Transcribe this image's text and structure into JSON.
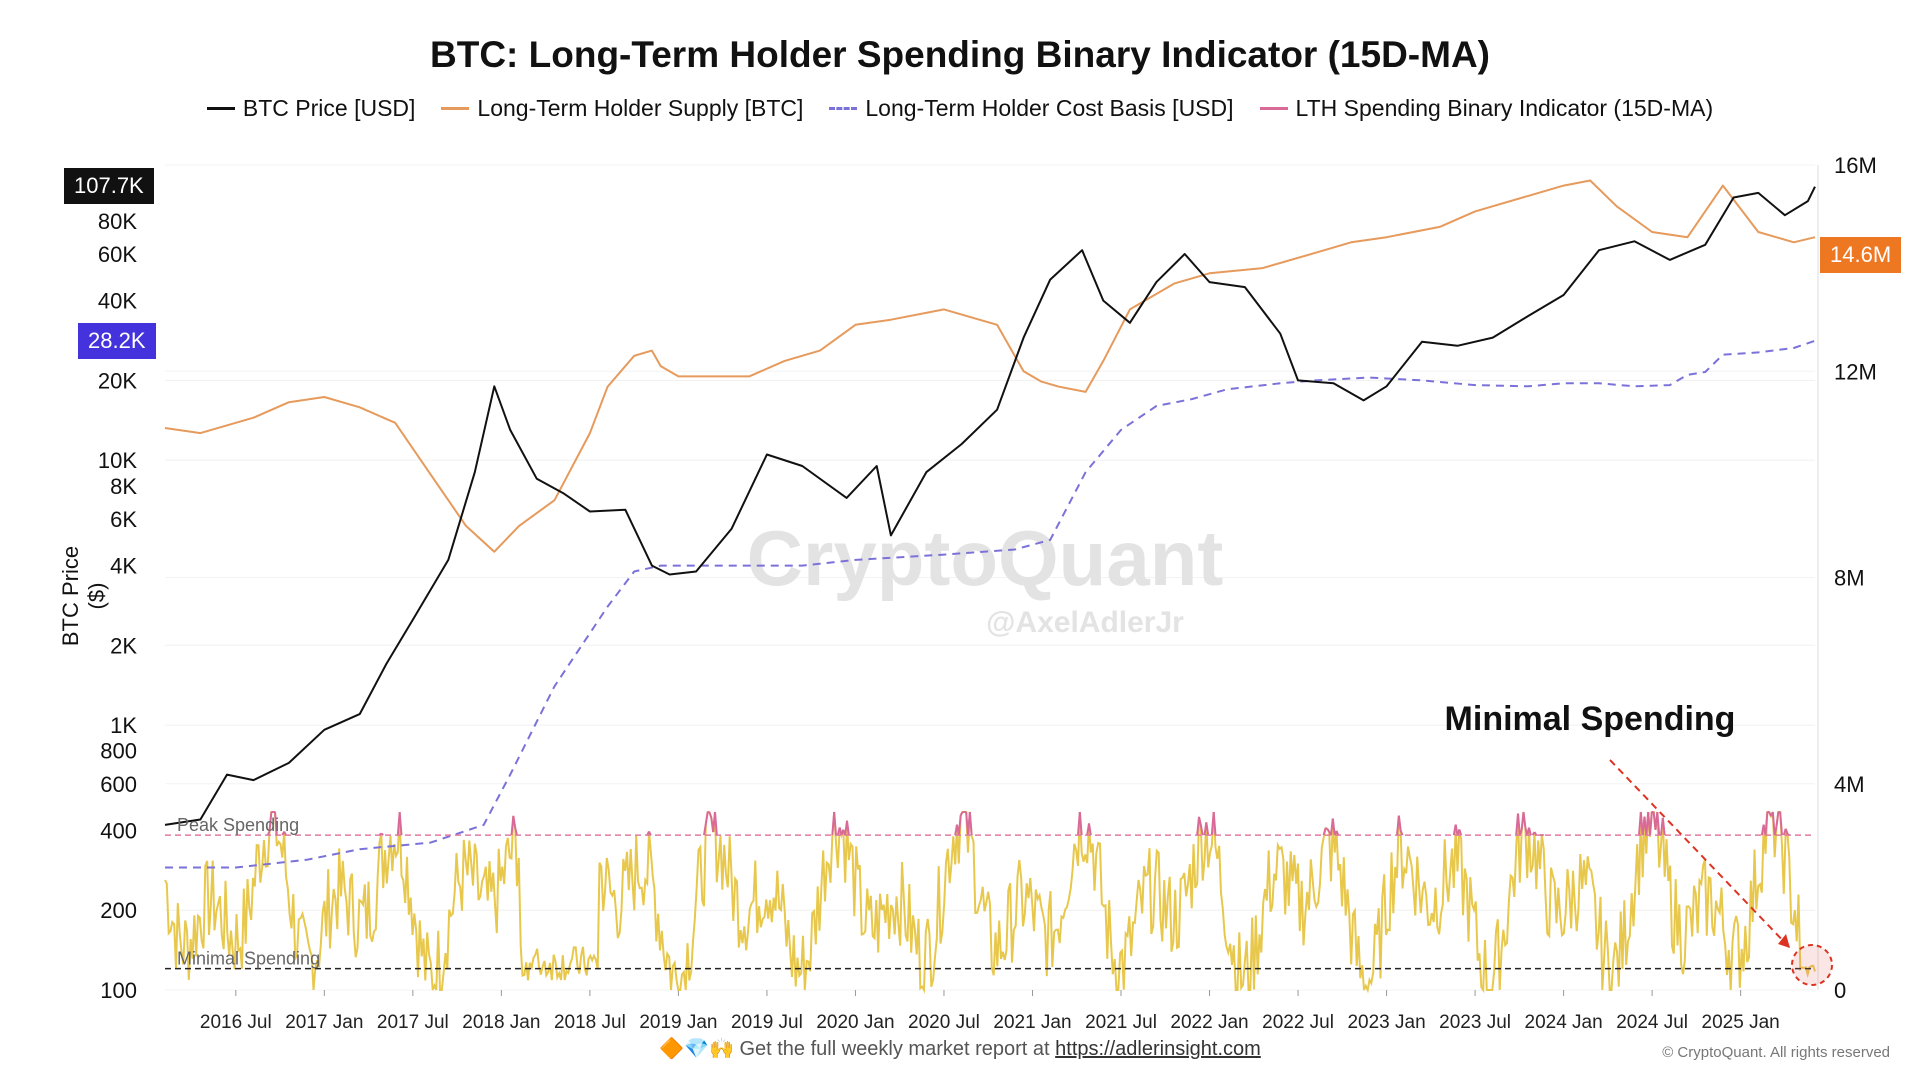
{
  "title": "BTC: Long-Term Holder Spending Binary Indicator (15D-MA)",
  "legend": [
    {
      "label": "BTC Price [USD]",
      "color": "#111111",
      "style": "solid"
    },
    {
      "label": "Long-Term Holder Supply [BTC]",
      "color": "#e69a5c",
      "style": "solid"
    },
    {
      "label": "Long-Term Holder Cost Basis [USD]",
      "color": "#7b72d9",
      "style": "dashed"
    },
    {
      "label": "LTH Spending Binary Indicator (15D-MA)",
      "color": "#d96a98",
      "style": "solid"
    }
  ],
  "annotations": {
    "minimal_spending_callout": "Minimal Spending",
    "peak_line_label": "Peak Spending",
    "minimal_line_label": "Minimal Spending",
    "watermark": "CryptoQuant",
    "watermark_handle": "@AxelAdlerJr"
  },
  "badges": {
    "price": "107.7K",
    "cost_basis": "28.2K",
    "supply": "14.6M"
  },
  "footer": {
    "text": "Get the full weekly market report at",
    "link": "https://adlerinsight.com",
    "emojis": "🔶💎🙌",
    "copyright": "© CryptoQuant. All rights reserved"
  },
  "chart_data": {
    "type": "line",
    "title": "BTC: Long-Term Holder Spending Binary Indicator (15D-MA)",
    "ylabel": "BTC Price ($)",
    "x_tick_labels": [
      "2016 Jul",
      "2017 Jan",
      "2017 Jul",
      "2018 Jan",
      "2018 Jul",
      "2019 Jan",
      "2019 Jul",
      "2020 Jan",
      "2020 Jul",
      "2021 Jan",
      "2021 Jul",
      "2022 Jan",
      "2022 Jul",
      "2023 Jan",
      "2023 Jul",
      "2024 Jan",
      "2024 Jul",
      "2025 Jan"
    ],
    "x_tick_dates": [
      2016.5,
      2017.0,
      2017.5,
      2018.0,
      2018.5,
      2019.0,
      2019.5,
      2020.0,
      2020.5,
      2021.0,
      2021.5,
      2022.0,
      2022.5,
      2023.0,
      2023.5,
      2024.0,
      2024.5,
      2025.0
    ],
    "xlim": [
      2016.1,
      2025.42
    ],
    "y_left": {
      "scale": "log",
      "lim": [
        100,
        130000
      ],
      "ticks": [
        100,
        200,
        400,
        600,
        800,
        1000,
        2000,
        4000,
        6000,
        8000,
        10000,
        20000,
        40000,
        60000,
        80000
      ],
      "tick_labels": [
        "100",
        "200",
        "400",
        "600",
        "800",
        "1K",
        "2K",
        "4K",
        "6K",
        "8K",
        "10K",
        "20K",
        "40K",
        "60K",
        "80K"
      ]
    },
    "y_right": {
      "scale": "linear",
      "lim": [
        0,
        16000000
      ],
      "ticks": [
        0,
        4000000,
        8000000,
        12000000,
        16000000
      ],
      "tick_labels": [
        "0",
        "4M",
        "8M",
        "12M",
        "16M"
      ]
    },
    "binary_indicator_range": [
      0,
      1
    ],
    "peak_spending_level": 0.87,
    "minimal_spending_level": 0.12,
    "series": [
      {
        "name": "BTC Price [USD]",
        "axis": "left",
        "x": [
          2016.1,
          2016.3,
          2016.45,
          2016.6,
          2016.8,
          2017.0,
          2017.2,
          2017.35,
          2017.5,
          2017.7,
          2017.85,
          2017.96,
          2018.05,
          2018.2,
          2018.35,
          2018.5,
          2018.7,
          2018.85,
          2018.95,
          2019.1,
          2019.3,
          2019.5,
          2019.7,
          2019.95,
          2020.12,
          2020.2,
          2020.4,
          2020.6,
          2020.8,
          2020.95,
          2021.1,
          2021.28,
          2021.4,
          2021.55,
          2021.7,
          2021.86,
          2022.0,
          2022.2,
          2022.4,
          2022.5,
          2022.7,
          2022.87,
          2023.0,
          2023.2,
          2023.4,
          2023.6,
          2023.8,
          2024.0,
          2024.2,
          2024.4,
          2024.6,
          2024.8,
          2024.96,
          2025.1,
          2025.25,
          2025.38,
          2025.42
        ],
        "y": [
          420,
          440,
          650,
          620,
          720,
          960,
          1100,
          1700,
          2500,
          4200,
          9000,
          19000,
          13000,
          8500,
          7500,
          6400,
          6500,
          4000,
          3700,
          3800,
          5500,
          10500,
          9500,
          7200,
          9500,
          5200,
          9000,
          11500,
          15500,
          29000,
          48000,
          62000,
          40000,
          33000,
          47000,
          60000,
          47000,
          45000,
          30000,
          20000,
          19500,
          16800,
          19000,
          28000,
          27000,
          29000,
          35000,
          42000,
          62000,
          67000,
          57000,
          65000,
          98000,
          102000,
          84000,
          95000,
          107700
        ]
      },
      {
        "name": "Long-Term Holder Supply [BTC]",
        "axis": "right",
        "x": [
          2016.1,
          2016.3,
          2016.6,
          2016.8,
          2017.0,
          2017.2,
          2017.4,
          2017.6,
          2017.8,
          2017.96,
          2018.1,
          2018.3,
          2018.5,
          2018.6,
          2018.75,
          2018.85,
          2018.9,
          2019.0,
          2019.2,
          2019.4,
          2019.6,
          2019.8,
          2020.0,
          2020.2,
          2020.5,
          2020.8,
          2020.95,
          2021.05,
          2021.15,
          2021.3,
          2021.4,
          2021.55,
          2021.8,
          2022.0,
          2022.3,
          2022.6,
          2022.8,
          2023.0,
          2023.3,
          2023.5,
          2023.8,
          2024.0,
          2024.15,
          2024.3,
          2024.5,
          2024.7,
          2024.9,
          2025.1,
          2025.3,
          2025.42
        ],
        "y": [
          10900000,
          10800000,
          11100000,
          11400000,
          11500000,
          11300000,
          11000000,
          10000000,
          9000000,
          8500000,
          9000000,
          9500000,
          10800000,
          11700000,
          12300000,
          12400000,
          12100000,
          11900000,
          11900000,
          11900000,
          12200000,
          12400000,
          12900000,
          13000000,
          13200000,
          12900000,
          12000000,
          11800000,
          11700000,
          11600000,
          12200000,
          13200000,
          13700000,
          13900000,
          14000000,
          14300000,
          14500000,
          14600000,
          14800000,
          15100000,
          15400000,
          15600000,
          15700000,
          15200000,
          14700000,
          14600000,
          15600000,
          14700000,
          14500000,
          14600000
        ]
      },
      {
        "name": "Long-Term Holder Cost Basis [USD]",
        "axis": "left",
        "x": [
          2016.1,
          2016.5,
          2016.9,
          2017.2,
          2017.6,
          2017.9,
          2018.05,
          2018.3,
          2018.6,
          2018.75,
          2018.9,
          2019.3,
          2019.7,
          2020.0,
          2020.5,
          2020.9,
          2021.1,
          2021.3,
          2021.5,
          2021.7,
          2021.9,
          2022.1,
          2022.4,
          2022.6,
          2022.9,
          2023.2,
          2023.5,
          2023.8,
          2024.0,
          2024.2,
          2024.4,
          2024.6,
          2024.7,
          2024.8,
          2024.9,
          2025.1,
          2025.3,
          2025.42
        ],
        "y": [
          290,
          290,
          310,
          340,
          360,
          420,
          650,
          1400,
          2800,
          3800,
          4000,
          4000,
          4000,
          4200,
          4400,
          4600,
          5000,
          9000,
          13000,
          16000,
          17000,
          18500,
          19500,
          20000,
          20500,
          20000,
          19200,
          19000,
          19500,
          19500,
          19000,
          19200,
          21000,
          21500,
          25000,
          25500,
          26500,
          28200
        ]
      }
    ]
  }
}
